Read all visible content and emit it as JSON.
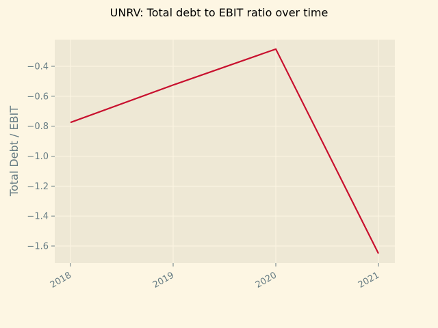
{
  "chart_data": {
    "type": "line",
    "title": "UNRV: Total debt to EBIT ratio over time",
    "xlabel": "",
    "ylabel": "Total Debt / EBIT",
    "x": [
      "2018",
      "2019",
      "2020",
      "2021"
    ],
    "series": [
      {
        "values": [
          -0.775,
          -0.525,
          -0.285,
          -1.65
        ],
        "color": "#c8102e"
      }
    ],
    "yticks": [
      -0.4,
      -0.6,
      -0.8,
      -1.0,
      -1.2,
      -1.4,
      -1.6
    ],
    "ytick_labels": [
      "−0.4",
      "−0.6",
      "−0.8",
      "−1.0",
      "−1.2",
      "−1.4",
      "−1.6"
    ],
    "ylim": [
      -1.714,
      -0.222
    ],
    "grid": true,
    "colors": {
      "plot_background": "#eee8d5",
      "figure_background": "#fdf6e3",
      "grid": "#fdf6e3",
      "line": "#c8102e"
    }
  }
}
